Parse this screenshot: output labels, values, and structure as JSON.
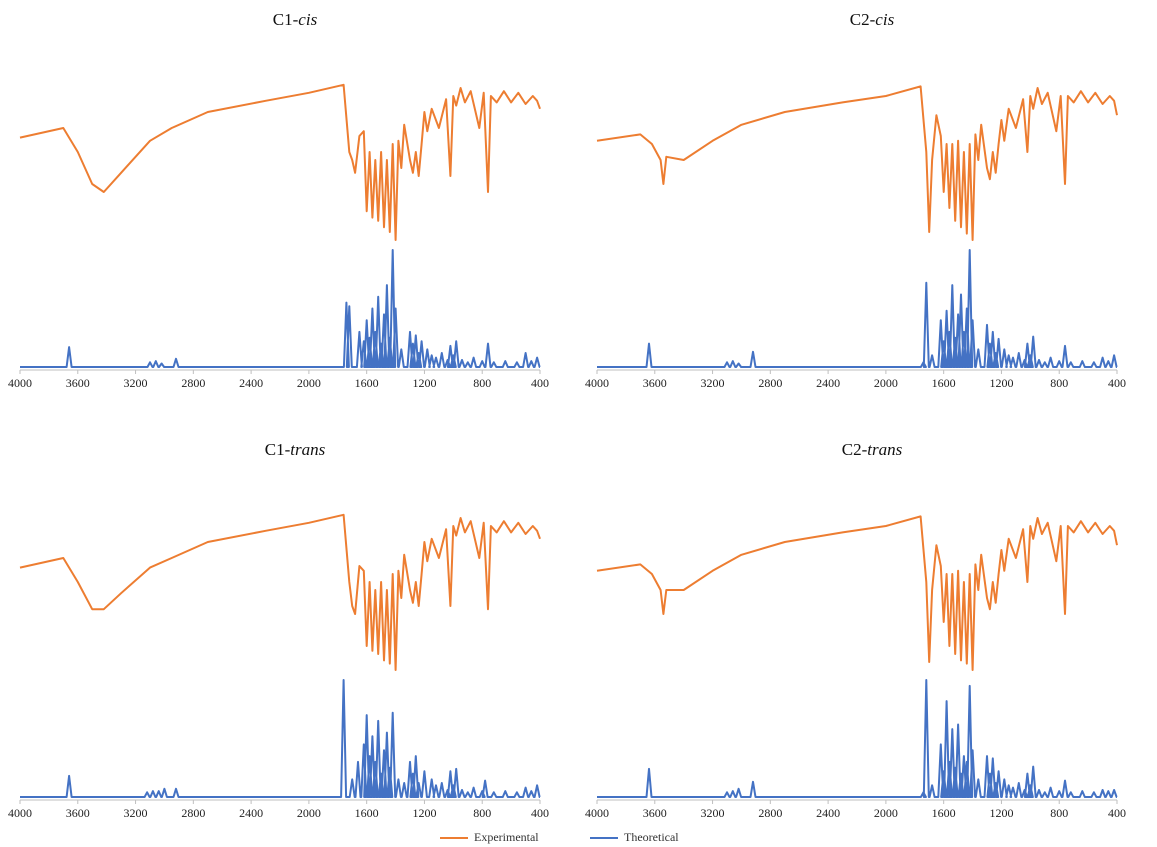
{
  "colors": {
    "experimental": "#ED7D31",
    "theoretical": "#4472C4",
    "axis": "#bfbfbf",
    "text": "#222222"
  },
  "legend": {
    "experimental": "Experimental",
    "theoretical": "Theoretical"
  },
  "chart_data": [
    {
      "type": "line",
      "title_main": "C1-",
      "title_italic": "cis",
      "xlabel": "",
      "ylabel": "",
      "xlim": [
        4000,
        400
      ],
      "x_reversed": true,
      "x_ticks": [
        4000,
        3600,
        3200,
        2800,
        2400,
        2000,
        1600,
        1200,
        800,
        400
      ],
      "grid": false,
      "legend": "bottom",
      "series": [
        {
          "name": "Experimental",
          "x": [
            4000,
            3700,
            3600,
            3500,
            3420,
            3300,
            3100,
            2950,
            2700,
            2300,
            2000,
            1760,
            1720,
            1700,
            1680,
            1650,
            1620,
            1600,
            1580,
            1560,
            1540,
            1520,
            1500,
            1480,
            1460,
            1440,
            1420,
            1400,
            1380,
            1360,
            1340,
            1300,
            1280,
            1260,
            1240,
            1220,
            1200,
            1180,
            1150,
            1100,
            1050,
            1020,
            1000,
            980,
            950,
            920,
            880,
            820,
            790,
            760,
            740,
            700,
            650,
            600,
            550,
            500,
            450,
            420,
            400
          ],
          "y": [
            0.64,
            0.7,
            0.55,
            0.35,
            0.3,
            0.42,
            0.62,
            0.7,
            0.8,
            0.87,
            0.92,
            0.97,
            0.55,
            0.5,
            0.42,
            0.65,
            0.68,
            0.18,
            0.55,
            0.14,
            0.5,
            0.12,
            0.55,
            0.08,
            0.5,
            0.05,
            0.6,
            0.0,
            0.62,
            0.45,
            0.72,
            0.5,
            0.42,
            0.55,
            0.4,
            0.6,
            0.8,
            0.68,
            0.82,
            0.7,
            0.88,
            0.4,
            0.9,
            0.84,
            0.95,
            0.86,
            0.93,
            0.7,
            0.92,
            0.3,
            0.9,
            0.86,
            0.93,
            0.86,
            0.92,
            0.85,
            0.9,
            0.87,
            0.82
          ]
        },
        {
          "name": "Theoretical",
          "x": [
            3660,
            3100,
            3060,
            3020,
            2920,
            1740,
            1720,
            1650,
            1620,
            1600,
            1580,
            1560,
            1540,
            1520,
            1500,
            1480,
            1460,
            1440,
            1420,
            1400,
            1360,
            1300,
            1280,
            1260,
            1240,
            1220,
            1180,
            1150,
            1120,
            1080,
            1040,
            1020,
            1000,
            980,
            940,
            900,
            860,
            800,
            760,
            720,
            640,
            560,
            500,
            460,
            420
          ],
          "y": [
            0.17,
            0.04,
            0.05,
            0.03,
            0.07,
            0.55,
            0.52,
            0.3,
            0.22,
            0.4,
            0.25,
            0.5,
            0.3,
            0.6,
            0.2,
            0.45,
            0.7,
            0.25,
            1.0,
            0.5,
            0.15,
            0.3,
            0.2,
            0.27,
            0.12,
            0.22,
            0.15,
            0.1,
            0.08,
            0.12,
            0.06,
            0.18,
            0.1,
            0.22,
            0.06,
            0.04,
            0.08,
            0.05,
            0.2,
            0.04,
            0.05,
            0.04,
            0.12,
            0.05,
            0.08
          ]
        }
      ]
    },
    {
      "type": "line",
      "title_main": "C2-",
      "title_italic": "cis",
      "xlabel": "",
      "ylabel": "",
      "xlim": [
        4000,
        400
      ],
      "x_reversed": true,
      "x_ticks": [
        4000,
        3600,
        3200,
        2800,
        2400,
        2000,
        1600,
        1200,
        800,
        400
      ],
      "grid": false,
      "legend": "bottom",
      "series": [
        {
          "name": "Experimental",
          "x": [
            4000,
            3700,
            3620,
            3560,
            3540,
            3520,
            3400,
            3200,
            3000,
            2700,
            2300,
            2000,
            1760,
            1720,
            1700,
            1680,
            1650,
            1620,
            1600,
            1580,
            1560,
            1540,
            1520,
            1500,
            1480,
            1460,
            1440,
            1420,
            1400,
            1380,
            1360,
            1340,
            1300,
            1280,
            1260,
            1240,
            1220,
            1200,
            1180,
            1150,
            1100,
            1050,
            1020,
            1000,
            980,
            950,
            920,
            880,
            820,
            790,
            760,
            740,
            700,
            650,
            600,
            550,
            500,
            450,
            420,
            400
          ],
          "y": [
            0.62,
            0.66,
            0.6,
            0.5,
            0.35,
            0.52,
            0.5,
            0.62,
            0.72,
            0.8,
            0.86,
            0.9,
            0.96,
            0.55,
            0.05,
            0.5,
            0.78,
            0.65,
            0.3,
            0.6,
            0.2,
            0.6,
            0.12,
            0.62,
            0.08,
            0.55,
            0.04,
            0.6,
            0.0,
            0.66,
            0.5,
            0.72,
            0.45,
            0.38,
            0.55,
            0.42,
            0.6,
            0.75,
            0.62,
            0.82,
            0.7,
            0.88,
            0.55,
            0.9,
            0.82,
            0.95,
            0.85,
            0.92,
            0.68,
            0.9,
            0.35,
            0.9,
            0.86,
            0.93,
            0.86,
            0.92,
            0.85,
            0.9,
            0.87,
            0.78
          ]
        },
        {
          "name": "Theoretical",
          "x": [
            3640,
            3100,
            3060,
            3020,
            2920,
            1740,
            1720,
            1680,
            1620,
            1600,
            1580,
            1560,
            1540,
            1520,
            1500,
            1480,
            1460,
            1440,
            1420,
            1400,
            1360,
            1300,
            1280,
            1260,
            1240,
            1220,
            1180,
            1150,
            1120,
            1080,
            1040,
            1020,
            1000,
            980,
            940,
            900,
            860,
            800,
            760,
            720,
            640,
            560,
            500,
            460,
            420
          ],
          "y": [
            0.2,
            0.04,
            0.05,
            0.03,
            0.13,
            0.04,
            0.72,
            0.1,
            0.4,
            0.22,
            0.48,
            0.3,
            0.7,
            0.25,
            0.45,
            0.62,
            0.3,
            0.5,
            1.0,
            0.4,
            0.15,
            0.36,
            0.2,
            0.3,
            0.12,
            0.24,
            0.15,
            0.1,
            0.08,
            0.12,
            0.06,
            0.2,
            0.1,
            0.26,
            0.06,
            0.04,
            0.08,
            0.05,
            0.18,
            0.04,
            0.05,
            0.04,
            0.08,
            0.05,
            0.1
          ]
        }
      ]
    },
    {
      "type": "line",
      "title_main": "C1-",
      "title_italic": "trans",
      "xlabel": "",
      "ylabel": "",
      "xlim": [
        4000,
        400
      ],
      "x_reversed": true,
      "x_ticks": [
        4000,
        3600,
        3200,
        2800,
        2400,
        2000,
        1600,
        1200,
        800,
        400
      ],
      "grid": false,
      "legend": "bottom",
      "series": [
        {
          "name": "Experimental",
          "x": [
            4000,
            3700,
            3600,
            3500,
            3420,
            3300,
            3100,
            2950,
            2700,
            2300,
            2000,
            1760,
            1720,
            1700,
            1680,
            1650,
            1620,
            1600,
            1580,
            1560,
            1540,
            1520,
            1500,
            1480,
            1460,
            1440,
            1420,
            1400,
            1380,
            1360,
            1340,
            1300,
            1280,
            1260,
            1240,
            1220,
            1200,
            1180,
            1150,
            1100,
            1050,
            1020,
            1000,
            980,
            950,
            920,
            880,
            820,
            790,
            760,
            740,
            700,
            650,
            600,
            550,
            500,
            450,
            420,
            400
          ],
          "y": [
            0.64,
            0.7,
            0.55,
            0.38,
            0.38,
            0.48,
            0.64,
            0.7,
            0.8,
            0.87,
            0.92,
            0.97,
            0.55,
            0.4,
            0.35,
            0.65,
            0.62,
            0.15,
            0.55,
            0.12,
            0.5,
            0.1,
            0.55,
            0.06,
            0.5,
            0.04,
            0.6,
            0.0,
            0.62,
            0.45,
            0.72,
            0.5,
            0.42,
            0.55,
            0.4,
            0.6,
            0.8,
            0.68,
            0.82,
            0.7,
            0.88,
            0.4,
            0.9,
            0.84,
            0.95,
            0.86,
            0.93,
            0.7,
            0.92,
            0.38,
            0.9,
            0.86,
            0.93,
            0.86,
            0.92,
            0.85,
            0.9,
            0.87,
            0.82
          ]
        },
        {
          "name": "Theoretical",
          "x": [
            3660,
            3120,
            3080,
            3040,
            3000,
            2920,
            1760,
            1700,
            1660,
            1620,
            1600,
            1580,
            1560,
            1540,
            1520,
            1500,
            1480,
            1460,
            1440,
            1420,
            1380,
            1340,
            1300,
            1280,
            1260,
            1240,
            1200,
            1150,
            1120,
            1080,
            1040,
            1020,
            1000,
            980,
            940,
            900,
            860,
            800,
            780,
            720,
            640,
            560,
            500,
            460,
            420
          ],
          "y": [
            0.18,
            0.04,
            0.05,
            0.05,
            0.07,
            0.07,
            1.0,
            0.15,
            0.3,
            0.45,
            0.7,
            0.35,
            0.52,
            0.3,
            0.65,
            0.2,
            0.4,
            0.55,
            0.25,
            0.72,
            0.15,
            0.12,
            0.3,
            0.2,
            0.35,
            0.12,
            0.22,
            0.15,
            0.1,
            0.12,
            0.06,
            0.22,
            0.1,
            0.24,
            0.06,
            0.04,
            0.08,
            0.05,
            0.14,
            0.04,
            0.05,
            0.04,
            0.08,
            0.05,
            0.1
          ]
        }
      ]
    },
    {
      "type": "line",
      "title_main": "C2-",
      "title_italic": "trans",
      "xlabel": "",
      "ylabel": "",
      "xlim": [
        4000,
        400
      ],
      "x_reversed": true,
      "x_ticks": [
        4000,
        3600,
        3200,
        2800,
        2400,
        2000,
        1600,
        1200,
        800,
        400
      ],
      "grid": false,
      "legend": "bottom",
      "series": [
        {
          "name": "Experimental",
          "x": [
            4000,
            3700,
            3620,
            3560,
            3540,
            3520,
            3400,
            3200,
            3000,
            2700,
            2300,
            2000,
            1760,
            1720,
            1700,
            1680,
            1650,
            1620,
            1600,
            1580,
            1560,
            1540,
            1520,
            1500,
            1480,
            1460,
            1440,
            1420,
            1400,
            1380,
            1360,
            1340,
            1300,
            1280,
            1260,
            1240,
            1220,
            1200,
            1180,
            1150,
            1100,
            1050,
            1020,
            1000,
            980,
            950,
            920,
            880,
            820,
            790,
            760,
            740,
            700,
            650,
            600,
            550,
            500,
            450,
            420,
            400
          ],
          "y": [
            0.62,
            0.66,
            0.6,
            0.5,
            0.35,
            0.5,
            0.5,
            0.62,
            0.72,
            0.8,
            0.86,
            0.9,
            0.96,
            0.55,
            0.05,
            0.5,
            0.78,
            0.65,
            0.3,
            0.6,
            0.15,
            0.6,
            0.1,
            0.62,
            0.06,
            0.55,
            0.04,
            0.6,
            0.0,
            0.66,
            0.5,
            0.72,
            0.45,
            0.38,
            0.55,
            0.42,
            0.6,
            0.75,
            0.62,
            0.82,
            0.7,
            0.88,
            0.55,
            0.9,
            0.82,
            0.95,
            0.85,
            0.92,
            0.68,
            0.9,
            0.35,
            0.9,
            0.86,
            0.93,
            0.86,
            0.92,
            0.85,
            0.9,
            0.87,
            0.78
          ]
        },
        {
          "name": "Theoretical",
          "x": [
            3640,
            3100,
            3060,
            3020,
            2920,
            1740,
            1720,
            1680,
            1620,
            1600,
            1580,
            1560,
            1540,
            1520,
            1500,
            1480,
            1460,
            1440,
            1420,
            1400,
            1360,
            1300,
            1280,
            1260,
            1240,
            1220,
            1180,
            1150,
            1120,
            1080,
            1040,
            1020,
            1000,
            980,
            940,
            900,
            860,
            800,
            760,
            720,
            640,
            560,
            500,
            460,
            420
          ],
          "y": [
            0.24,
            0.04,
            0.05,
            0.07,
            0.13,
            0.04,
            1.0,
            0.1,
            0.45,
            0.22,
            0.82,
            0.3,
            0.58,
            0.25,
            0.62,
            0.2,
            0.35,
            0.3,
            0.95,
            0.4,
            0.15,
            0.35,
            0.2,
            0.33,
            0.12,
            0.22,
            0.15,
            0.1,
            0.08,
            0.12,
            0.06,
            0.2,
            0.1,
            0.26,
            0.06,
            0.04,
            0.08,
            0.05,
            0.14,
            0.04,
            0.05,
            0.04,
            0.06,
            0.05,
            0.06
          ]
        }
      ]
    }
  ]
}
